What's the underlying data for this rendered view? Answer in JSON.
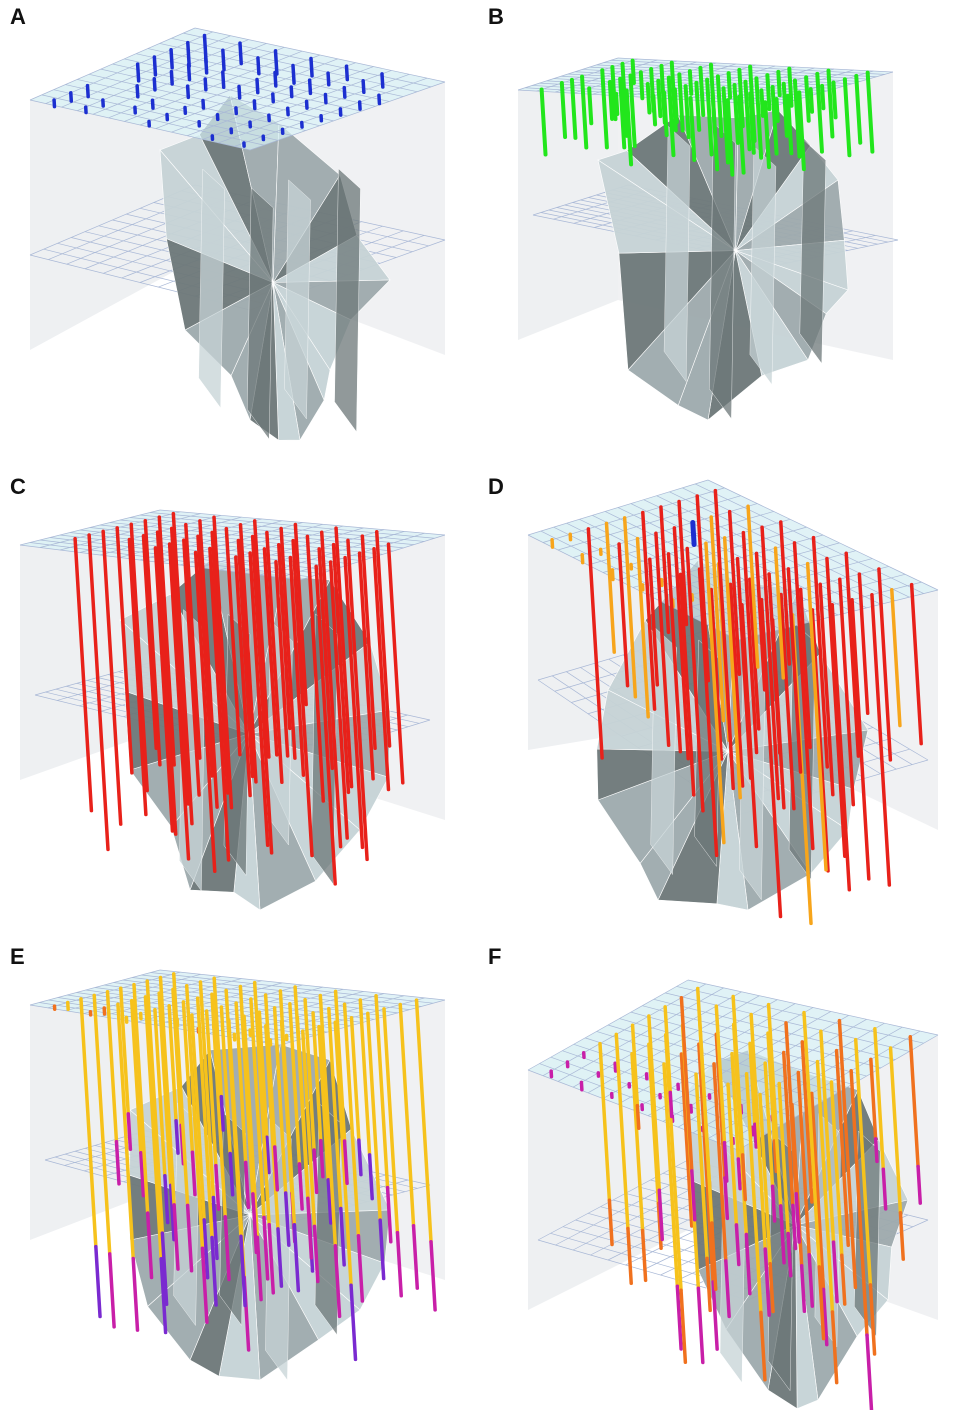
{
  "colors": {
    "wall": "#eef0f2",
    "top_surface": "#d9f2f6",
    "grid_line": "#a9b8d6",
    "body_light": "#c6d3d6",
    "body_mid": "#9eaaad",
    "body_dark": "#6d7879",
    "blue": "#1c2fd0",
    "green": "#22e61c",
    "red": "#e8211a",
    "orange": "#f7a51b",
    "yellow": "#f6c21c",
    "magenta": "#c81fa8",
    "purple": "#7a2ad0",
    "dark_orange": "#f0711e"
  },
  "panels": [
    {
      "label": "A",
      "stick_colors": [
        "blue"
      ]
    },
    {
      "label": "B",
      "stick_colors": [
        "green"
      ]
    },
    {
      "label": "C",
      "stick_colors": [
        "red"
      ]
    },
    {
      "label": "D",
      "stick_colors": [
        "red",
        "orange",
        "blue"
      ]
    },
    {
      "label": "E",
      "stick_colors": [
        "yellow",
        "magenta",
        "purple"
      ]
    },
    {
      "label": "F",
      "stick_colors": [
        "yellow",
        "dark_orange",
        "magenta"
      ]
    }
  ]
}
